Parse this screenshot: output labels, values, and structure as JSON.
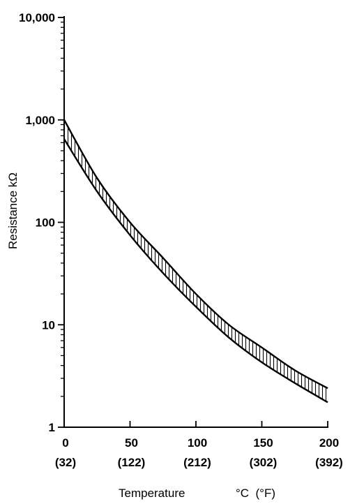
{
  "chart_data": {
    "type": "area",
    "title": "",
    "ylabel": "Resistance kΩ",
    "xlabel": "Temperature",
    "xlabel_units": "°C  (°F)",
    "y_scale": "log",
    "ylim": [
      1,
      10000
    ],
    "xlim": [
      0,
      200
    ],
    "grid": false,
    "legend": "none",
    "band_fill": "vertical hatch",
    "y_ticks": [
      {
        "value": 1,
        "label": "1"
      },
      {
        "value": 10,
        "label": "10"
      },
      {
        "value": 100,
        "label": "100"
      },
      {
        "value": 1000,
        "label": "1,000"
      },
      {
        "value": 10000,
        "label": "10,000"
      }
    ],
    "x_ticks": [
      {
        "value": 0,
        "label": "0",
        "sublabel": "(32)"
      },
      {
        "value": 50,
        "label": "50",
        "sublabel": "(122)"
      },
      {
        "value": 100,
        "label": "100",
        "sublabel": "(212)"
      },
      {
        "value": 150,
        "label": "150",
        "sublabel": "(302)"
      },
      {
        "value": 200,
        "label": "200",
        "sublabel": "(392)"
      }
    ],
    "series": [
      {
        "x": [
          0,
          25,
          50,
          75,
          100,
          125,
          150,
          175,
          200
        ],
        "values": [
          1000,
          270,
          100,
          45,
          20,
          10,
          6,
          3.6,
          2.4
        ]
      },
      {
        "x": [
          0,
          25,
          50,
          75,
          100,
          125,
          150,
          175,
          200
        ],
        "values": [
          650,
          200,
          75,
          32,
          15,
          7.5,
          4.3,
          2.7,
          1.75
        ]
      }
    ]
  }
}
